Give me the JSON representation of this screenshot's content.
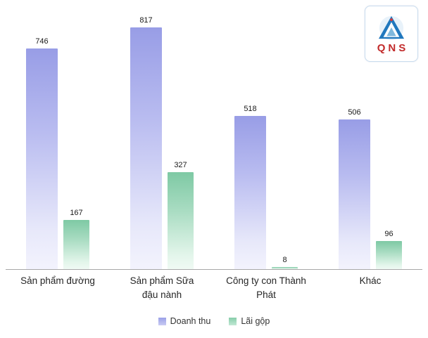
{
  "logo": {
    "text": "QNS"
  },
  "chart_data": {
    "type": "bar",
    "title": "",
    "xlabel": "",
    "ylabel": "",
    "categories": [
      "Sản phẩm đường",
      "Sản phẩm Sữa đậu nành",
      "Công ty con Thành Phát",
      "Khác"
    ],
    "series": [
      {
        "name": "Doanh thu",
        "values": [
          746,
          817,
          518,
          506
        ],
        "color": "#989de6"
      },
      {
        "name": "Lãi gộp",
        "values": [
          167,
          327,
          8,
          96
        ],
        "color": "#7ec9a4"
      }
    ],
    "ylim": [
      0,
      850
    ],
    "grid": false,
    "legend_position": "bottom",
    "value_labels": true
  }
}
